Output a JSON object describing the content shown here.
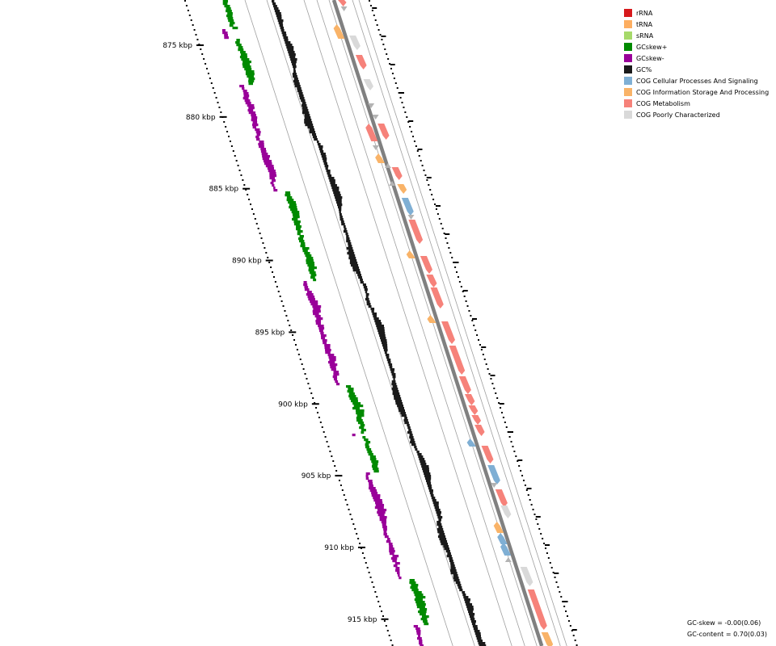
{
  "legend": [
    {
      "label": "rRNA",
      "color": "#d7191c"
    },
    {
      "label": "tRNA",
      "color": "#fdae61"
    },
    {
      "label": "sRNA",
      "color": "#a6d96a"
    },
    {
      "label": "GCskew+",
      "color": "#008a00"
    },
    {
      "label": "GCskew-",
      "color": "#990099"
    },
    {
      "label": "GC%",
      "color": "#1a1a1a"
    },
    {
      "label": "COG Cellular Processes And Signaling",
      "color": "#7fafd4"
    },
    {
      "label": "COG Information Storage And Processing",
      "color": "#f9b368"
    },
    {
      "label": "COG Metabolism",
      "color": "#f6827a"
    },
    {
      "label": "COG Poorly Characterized",
      "color": "#d9d9d9"
    }
  ],
  "ticks": [
    {
      "kbp": 875,
      "label": "875 kbp"
    },
    {
      "kbp": 880,
      "label": "880 kbp"
    },
    {
      "kbp": 885,
      "label": "885 kbp"
    },
    {
      "kbp": 890,
      "label": "890 kbp"
    },
    {
      "kbp": 895,
      "label": "895 kbp"
    },
    {
      "kbp": 900,
      "label": "900 kbp"
    },
    {
      "kbp": 905,
      "label": "905 kbp"
    },
    {
      "kbp": 910,
      "label": "910 kbp"
    },
    {
      "kbp": 915,
      "label": "915 kbp"
    }
  ],
  "stats": {
    "gc_skew": "GC-skew = -0.00(0.06)",
    "gc_content": "GC-content = 0.70(0.03)"
  },
  "tracks": {
    "backbone_color": "#808080",
    "rna_gray": "#b3b3b3"
  }
}
